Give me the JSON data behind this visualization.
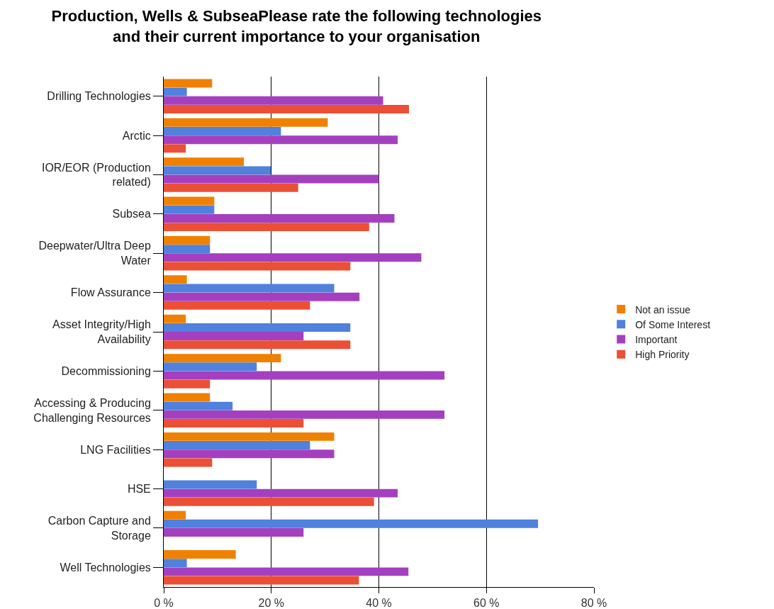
{
  "chart_data": {
    "type": "bar",
    "orientation": "horizontal",
    "title": "Production, Wells & SubseaPlease rate the following technologies and their current importance to your organisation",
    "categories": [
      "Drilling Technologies",
      "Arctic",
      "IOR/EOR (Production related)",
      "Subsea",
      "Deepwater/Ultra Deep Water",
      "Flow Assurance",
      "Asset Integrity/High Availability",
      "Decommissioning",
      "Accessing & Producing Challenging Resources",
      "LNG Facilities",
      "HSE",
      "Carbon Capture and Storage",
      "Well Technologies"
    ],
    "series": [
      {
        "name": "Not an issue",
        "color": "#f08000",
        "values": [
          9.0,
          30.5,
          14.9,
          9.4,
          8.6,
          4.3,
          4.1,
          21.8,
          8.6,
          31.7,
          0,
          4.1,
          13.4
        ]
      },
      {
        "name": "Of Some Interest",
        "color": "#4f81dd",
        "values": [
          4.3,
          21.8,
          19.9,
          9.4,
          8.6,
          31.7,
          34.7,
          17.3,
          12.8,
          27.2,
          17.3,
          69.6,
          4.3
        ]
      },
      {
        "name": "Important",
        "color": "#a440bf",
        "values": [
          40.8,
          43.5,
          40.0,
          42.9,
          47.9,
          36.4,
          26.0,
          52.2,
          52.2,
          31.7,
          43.5,
          26.0,
          45.5
        ]
      },
      {
        "name": "High Priority",
        "color": "#eb4f35",
        "values": [
          45.6,
          4.1,
          25.0,
          38.2,
          34.7,
          27.2,
          34.7,
          8.6,
          26.0,
          9.0,
          39.1,
          0,
          36.3
        ]
      }
    ],
    "xlim": [
      0,
      80
    ],
    "xticks": [
      {
        "value": 0,
        "label": "0 %"
      },
      {
        "value": 20,
        "label": "20 %"
      },
      {
        "value": 40,
        "label": "40 %"
      },
      {
        "value": 60,
        "label": "60 %"
      },
      {
        "value": 80,
        "label": "80 %"
      }
    ],
    "grid": "x",
    "legend": "right"
  }
}
